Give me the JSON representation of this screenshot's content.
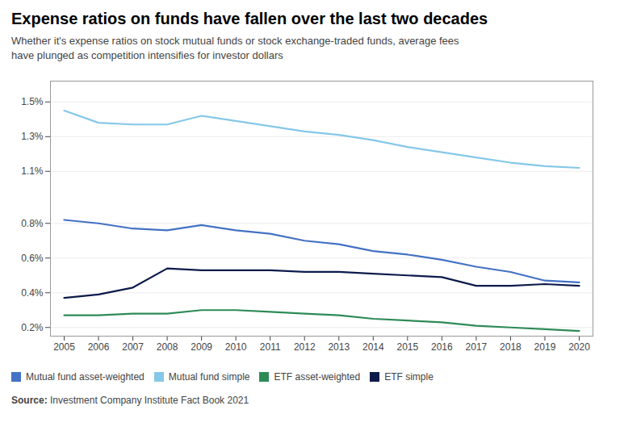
{
  "chart_data": {
    "type": "line",
    "title": "Expense ratios on funds have fallen over the last two decades",
    "subtitle": "Whether it's expense ratios on stock mutual funds or stock exchange-traded funds, average fees\nhave plunged as competition intensifies for investor dollars",
    "source_bold": "Source:",
    "source": " Investment Company Institute Fact Book 2021",
    "x": [
      2005,
      2006,
      2007,
      2008,
      2009,
      2010,
      2011,
      2012,
      2013,
      2014,
      2015,
      2016,
      2017,
      2018,
      2019,
      2020
    ],
    "series": [
      {
        "name": "Mutual fund asset-weighted",
        "color": "#4472C4",
        "values": [
          0.82,
          0.8,
          0.77,
          0.76,
          0.79,
          0.76,
          0.74,
          0.7,
          0.68,
          0.64,
          0.62,
          0.59,
          0.55,
          0.52,
          0.47,
          0.46
        ]
      },
      {
        "name": "Mutual fund simple",
        "color": "#85C8E8",
        "values": [
          1.45,
          1.38,
          1.37,
          1.37,
          1.42,
          1.39,
          1.36,
          1.33,
          1.31,
          1.28,
          1.24,
          1.21,
          1.18,
          1.15,
          1.13,
          1.12
        ]
      },
      {
        "name": "ETF asset-weighted",
        "color": "#2E8B57",
        "values": [
          0.27,
          0.27,
          0.28,
          0.28,
          0.3,
          0.3,
          0.29,
          0.28,
          0.27,
          0.25,
          0.24,
          0.23,
          0.21,
          0.2,
          0.19,
          0.18
        ]
      },
      {
        "name": "ETF simple",
        "color": "#0D1B4B",
        "values": [
          0.37,
          0.39,
          0.43,
          0.54,
          0.53,
          0.53,
          0.53,
          0.52,
          0.52,
          0.51,
          0.5,
          0.49,
          0.44,
          0.44,
          0.45,
          0.44
        ]
      }
    ],
    "xlim": [
      2004.6,
      2020.4
    ],
    "xticks": [
      2005,
      2006,
      2007,
      2008,
      2009,
      2010,
      2011,
      2012,
      2013,
      2014,
      2015,
      2016,
      2017,
      2018,
      2019,
      2020
    ],
    "ylim": [
      0.15,
      1.62
    ],
    "yticks": [
      {
        "value": 0.2,
        "label": "0.2%"
      },
      {
        "value": 0.4,
        "label": "0.4%"
      },
      {
        "value": 0.6,
        "label": "0.6%"
      },
      {
        "value": 0.8,
        "label": "0.8%"
      },
      {
        "value": 1.1,
        "label": "1.1%"
      },
      {
        "value": 1.3,
        "label": "1.3%"
      },
      {
        "value": 1.5,
        "label": "1.5%"
      }
    ],
    "grid": "y",
    "legend": "bottom"
  }
}
